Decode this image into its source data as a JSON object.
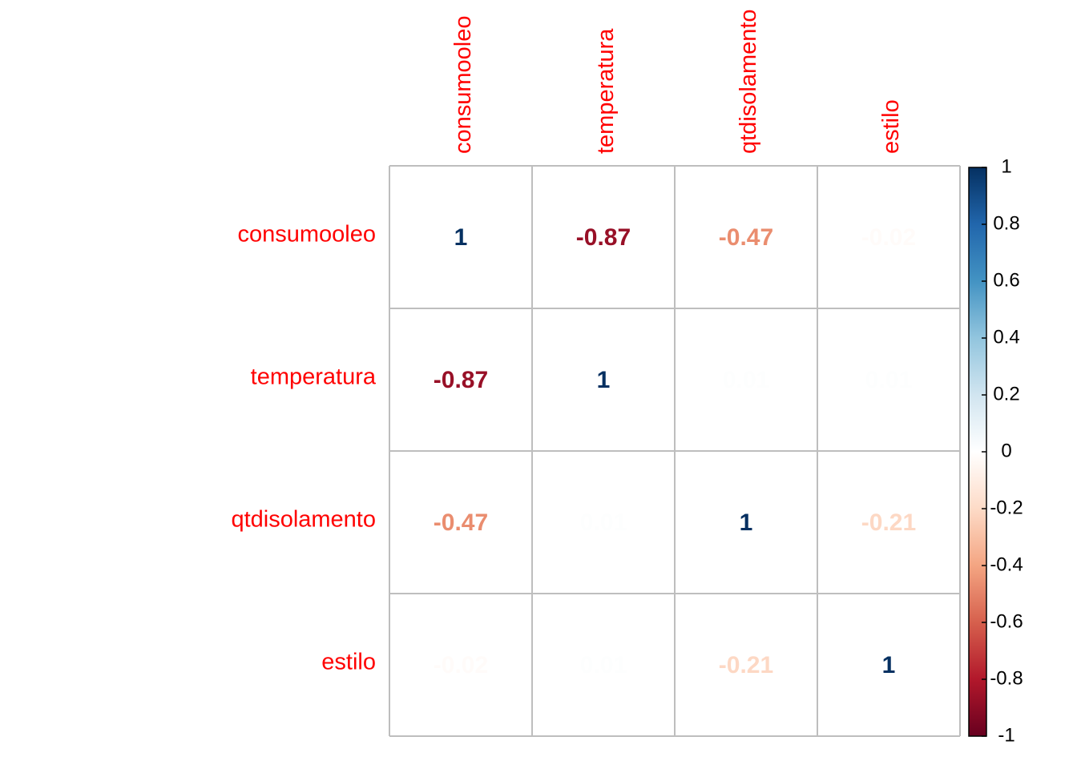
{
  "chart_data": {
    "type": "heatmap",
    "variables": [
      "consumooleo",
      "temperatura",
      "qtdisolamento",
      "estilo"
    ],
    "matrix": [
      [
        1,
        -0.87,
        -0.47,
        -0.02
      ],
      [
        -0.87,
        1,
        0.01,
        0.01
      ],
      [
        -0.47,
        0.01,
        1,
        -0.21
      ],
      [
        -0.02,
        0.01,
        -0.21,
        1
      ]
    ],
    "cell_labels": [
      [
        "1",
        "-0.87",
        "-0.47",
        "-0.02"
      ],
      [
        "-0.87",
        "1",
        "0.01",
        "0.01"
      ],
      [
        "-0.47",
        "0.01",
        "1",
        "-0.21"
      ],
      [
        "-0.02",
        "0.01",
        "-0.21",
        "1"
      ]
    ],
    "colorbar": {
      "range": [
        -1,
        1
      ],
      "ticks": [
        "1",
        "0.8",
        "0.6",
        "0.4",
        "0.2",
        "0",
        "-0.2",
        "-0.4",
        "-0.6",
        "-0.8",
        "-1"
      ],
      "tick_values": [
        1,
        0.8,
        0.6,
        0.4,
        0.2,
        0,
        -0.2,
        -0.4,
        -0.6,
        -0.8,
        -1
      ],
      "palette": [
        "#67001F",
        "#B2182B",
        "#D6604D",
        "#F4A582",
        "#FDDBC7",
        "#FFFFFF",
        "#D1E5F0",
        "#92C5DE",
        "#4393C3",
        "#2166AC",
        "#053061"
      ]
    },
    "label_color": "#FF0000",
    "grid_color": "#BEBEBE",
    "legend_position": "right"
  }
}
